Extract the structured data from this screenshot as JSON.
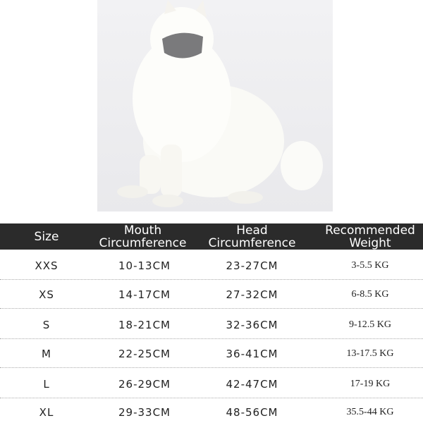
{
  "photo": {
    "subject": "white samoyed dog wearing gray muzzle"
  },
  "table": {
    "headers": [
      "Size",
      "Mouth Circumference",
      "Head Circumference",
      "Recommended Weight"
    ],
    "rows": [
      [
        "XXS",
        "10-13CM",
        "23-27CM",
        "3-5.5 KG"
      ],
      [
        "XS",
        "14-17CM",
        "27-32CM",
        "6-8.5 KG"
      ],
      [
        "S",
        "18-21CM",
        "32-36CM",
        "9-12.5 KG"
      ],
      [
        "M",
        "22-25CM",
        "36-41CM",
        "13-17.5 KG"
      ],
      [
        "L",
        "26-29CM",
        "42-47CM",
        "17-19 KG"
      ],
      [
        "XL",
        "29-33CM",
        "48-56CM",
        "35.5-44 KG"
      ]
    ]
  },
  "colors": {
    "header_bg": "#2b2b2b",
    "header_text": "#ffffff"
  }
}
